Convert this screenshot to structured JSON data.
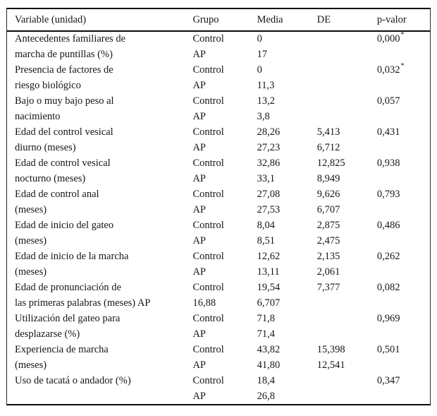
{
  "table": {
    "header": {
      "variable": "Variable (unidad)",
      "grupo": "Grupo",
      "media": "Media",
      "de": "DE",
      "p": "p-valor"
    },
    "significance_marker": "*",
    "rows": [
      {
        "variable": "Antecedentes familiares de",
        "grupo": "Control",
        "media": "0",
        "de": "",
        "p": "0,000",
        "star": true
      },
      {
        "variable": "marcha de puntillas (%)",
        "grupo": "AP",
        "media": "17",
        "de": "",
        "p": "",
        "star": false
      },
      {
        "variable": "Presencia de factores de",
        "grupo": "Control",
        "media": "0",
        "de": "",
        "p": "0,032",
        "star": true
      },
      {
        "variable": "riesgo biológico",
        "grupo": "AP",
        "media": "11,3",
        "de": "",
        "p": "",
        "star": false
      },
      {
        "variable": "Bajo o muy bajo peso al",
        "grupo": "Control",
        "media": "13,2",
        "de": "",
        "p": "0,057",
        "star": false
      },
      {
        "variable": "nacimiento",
        "grupo": "AP",
        "media": "3,8",
        "de": "",
        "p": "",
        "star": false
      },
      {
        "variable": "Edad del control vesical",
        "grupo": "Control",
        "media": "28,26",
        "de": "5,413",
        "p": "0,431",
        "star": false
      },
      {
        "variable": "diurno (meses)",
        "grupo": "AP",
        "media": "27,23",
        "de": "6,712",
        "p": "",
        "star": false
      },
      {
        "variable": "Edad de control vesical",
        "grupo": "Control",
        "media": "32,86",
        "de": "12,825",
        "p": "0,938",
        "star": false
      },
      {
        "variable": "nocturno (meses)",
        "grupo": "AP",
        "media": "33,1",
        "de": "8,949",
        "p": "",
        "star": false
      },
      {
        "variable": "Edad de control anal",
        "grupo": "Control",
        "media": "27,08",
        "de": "9,626",
        "p": "0,793",
        "star": false
      },
      {
        "variable": "(meses)",
        "grupo": "AP",
        "media": "27,53",
        "de": "6,707",
        "p": "",
        "star": false
      },
      {
        "variable": "Edad de inicio del gateo",
        "grupo": "Control",
        "media": "8,04",
        "de": "2,875",
        "p": "0,486",
        "star": false
      },
      {
        "variable": "(meses)",
        "grupo": "AP",
        "media": "8,51",
        "de": "2,475",
        "p": "",
        "star": false
      },
      {
        "variable": "Edad de inicio de la marcha",
        "grupo": "Control",
        "media": "12,62",
        "de": "2,135",
        "p": "0,262",
        "star": false
      },
      {
        "variable": "(meses)",
        "grupo": "AP",
        "media": "13,11",
        "de": "2,061",
        "p": "",
        "star": false
      },
      {
        "variable": "Edad de pronunciación de",
        "grupo": "Control",
        "media": "19,54",
        "de": "7,377",
        "p": "0,082",
        "star": false
      },
      {
        "variable": "las primeras palabras (meses) AP",
        "grupo": "16,88",
        "media": "6,707",
        "de": "",
        "p": "",
        "star": false
      },
      {
        "variable": "Utilización del gateo para",
        "grupo": "Control",
        "media": "71,8",
        "de": "",
        "p": "0,969",
        "star": false
      },
      {
        "variable": "desplazarse (%)",
        "grupo": "AP",
        "media": "71,4",
        "de": "",
        "p": "",
        "star": false
      },
      {
        "variable": "Experiencia de marcha",
        "grupo": "Control",
        "media": "43,82",
        "de": "15,398",
        "p": "0,501",
        "star": false
      },
      {
        "variable": "(meses)",
        "grupo": "AP",
        "media": "41,80",
        "de": "12,541",
        "p": "",
        "star": false
      },
      {
        "variable": "Uso de tacatá o andador (%)",
        "grupo": "Control",
        "media": "18,4",
        "de": "",
        "p": "0,347",
        "star": false
      },
      {
        "variable": "",
        "grupo": "AP",
        "media": "26,8",
        "de": "",
        "p": "",
        "star": false
      }
    ]
  }
}
